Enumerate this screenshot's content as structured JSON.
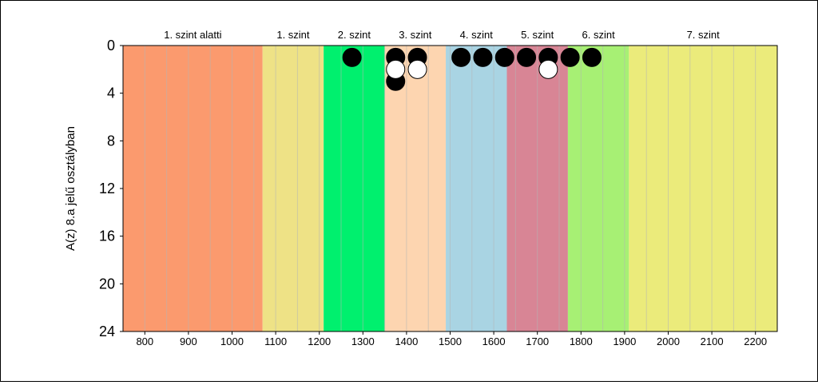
{
  "chart_data": {
    "type": "scatter",
    "title": "",
    "xlabel": "",
    "ylabel": "A(z) 8.a jelű osztályban",
    "xlim": [
      750,
      2250
    ],
    "ylim": [
      0,
      24
    ],
    "y_inverted": true,
    "x_ticks": [
      800,
      900,
      1000,
      1100,
      1200,
      1300,
      1400,
      1500,
      1600,
      1700,
      1800,
      1900,
      2000,
      2100,
      2200
    ],
    "y_ticks": [
      0,
      4,
      8,
      12,
      16,
      20,
      24
    ],
    "minor_gridlines_x_every": 50,
    "bands": [
      {
        "label": "1. szint alatti",
        "from": 750,
        "to": 1070,
        "color": "#fb9a6e"
      },
      {
        "label": "1. szint",
        "from": 1070,
        "to": 1210,
        "color": "#eee286"
      },
      {
        "label": "2. szint",
        "from": 1210,
        "to": 1350,
        "color": "#00f06e"
      },
      {
        "label": "3. szint",
        "from": 1350,
        "to": 1490,
        "color": "#fdd5b0"
      },
      {
        "label": "4. szint",
        "from": 1490,
        "to": 1630,
        "color": "#a9d4e3"
      },
      {
        "label": "5. szint",
        "from": 1630,
        "to": 1770,
        "color": "#d88595"
      },
      {
        "label": "6. szint",
        "from": 1770,
        "to": 1910,
        "color": "#a7f074"
      },
      {
        "label": "7. szint",
        "from": 1910,
        "to": 2250,
        "color": "#ebeb7b"
      }
    ],
    "series": [
      {
        "fill": "#000000",
        "points": [
          {
            "x": 1275,
            "y": 1
          },
          {
            "x": 1375,
            "y": 1
          },
          {
            "x": 1375,
            "y": 3
          },
          {
            "x": 1425,
            "y": 1
          },
          {
            "x": 1525,
            "y": 1
          },
          {
            "x": 1575,
            "y": 1
          },
          {
            "x": 1625,
            "y": 1
          },
          {
            "x": 1675,
            "y": 1
          },
          {
            "x": 1725,
            "y": 1
          },
          {
            "x": 1775,
            "y": 1
          },
          {
            "x": 1825,
            "y": 1
          }
        ]
      },
      {
        "fill": "#ffffff",
        "points": [
          {
            "x": 1375,
            "y": 2
          },
          {
            "x": 1425,
            "y": 2
          },
          {
            "x": 1725,
            "y": 2
          }
        ]
      }
    ]
  }
}
